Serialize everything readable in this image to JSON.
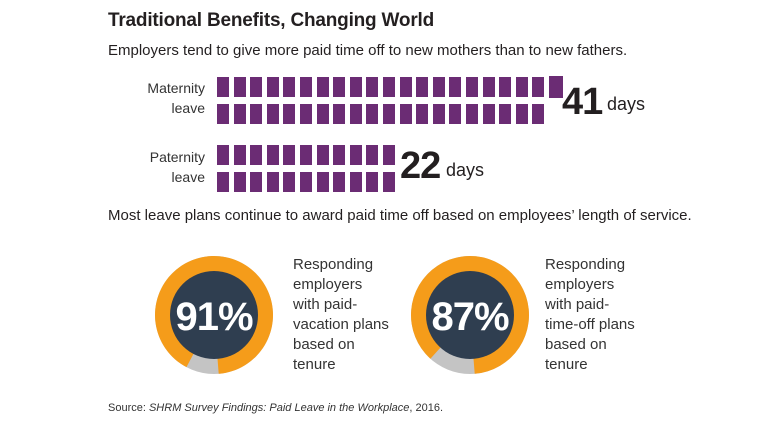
{
  "title": "Traditional Benefits, Changing World",
  "subtitle": "Employers tend to give more paid time off to new mothers than to new fathers.",
  "section2": "Most leave plans continue to award paid time off based on employees’ length of service.",
  "source": {
    "prefix": "Source: ",
    "italic": "SHRM Survey Findings: Paid Leave in the Workplace",
    "suffix": ", 2016."
  },
  "colors": {
    "purple": "#6b2c74",
    "orange": "#f59c1a",
    "gray": "#c4c4c4",
    "navy": "#2f3e50"
  },
  "chart_data": [
    {
      "type": "bar",
      "title": "",
      "categories": [
        "Maternity leave",
        "Paternity leave"
      ],
      "category_lines": [
        [
          "Maternity",
          "leave"
        ],
        [
          "Paternity",
          "leave"
        ]
      ],
      "values": [
        41,
        22
      ],
      "unit": "days"
    },
    {
      "type": "pie",
      "values": [
        91
      ],
      "value_label": "91%",
      "description": "Responding\nemployers\nwith paid-\nvacation plans\nbased on\ntenure"
    },
    {
      "type": "pie",
      "values": [
        87
      ],
      "value_label": "87%",
      "description": "Responding\nemployers\nwith paid-\ntime-off plans\nbased on\ntenure"
    }
  ]
}
